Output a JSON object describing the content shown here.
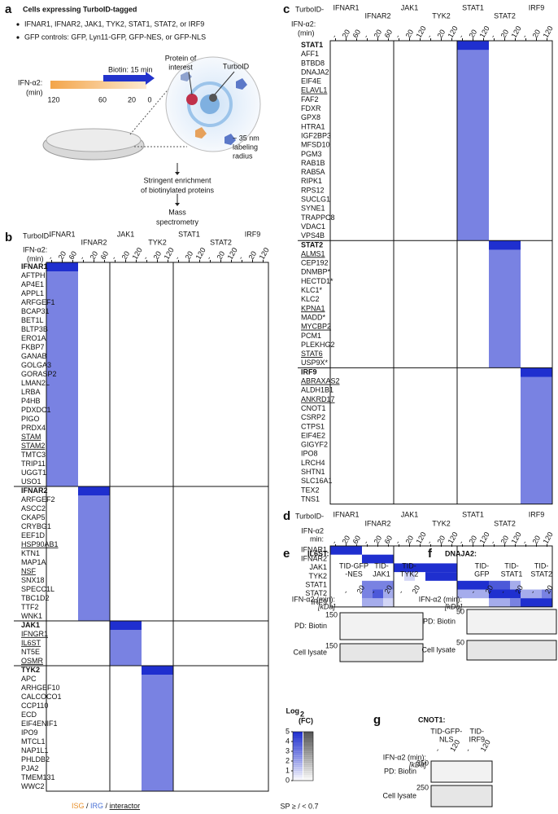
{
  "panel_a": {
    "letter": "a",
    "title": "Cells expressing TurboID-tagged",
    "bullets": [
      "IFNAR1, IFNAR2, JAK1, TYK2, STAT1, STAT2, or IRF9",
      "GFP controls: GFP, Lyn11-GFP, GFP-NES, or GFP-NLS"
    ],
    "biotin": "Biotin: 15 min",
    "ifn": "IFN-α2:",
    "ifn_unit": "(min)",
    "timeline": [
      "120",
      "60",
      "20",
      "0"
    ],
    "poi": [
      "Protein of",
      "interest"
    ],
    "turboid": "TurboID",
    "radius": [
      "~ 35 nm",
      "labeling",
      "radius"
    ],
    "step1": [
      "Stringent enrichment",
      "of biotinylated proteins"
    ],
    "step2": [
      "Mass",
      "spectrometry"
    ]
  },
  "heatmap_header": {
    "prefix": "TurboID-",
    "ifn": "IFN-α2:",
    "unit": "(min)",
    "baits": [
      "IFNAR1",
      "IFNAR2",
      "JAK1",
      "TYK2",
      "STAT1",
      "STAT2",
      "IRF9"
    ],
    "times": [
      [
        "-",
        "20",
        "60"
      ],
      [
        "-",
        "20",
        "60"
      ],
      [
        "-",
        "20",
        "120"
      ],
      [
        "-",
        "20",
        "120"
      ],
      [
        "-",
        "20",
        "120"
      ],
      [
        "-",
        "20",
        "120"
      ],
      [
        "-",
        "20",
        "120"
      ]
    ]
  },
  "panel_b": {
    "letter": "b",
    "sections": [
      [
        {
          "label": "IFNAR1",
          "bold": true
        },
        {
          "label": "AFTPH"
        },
        {
          "label": "AP4E1"
        },
        {
          "label": "APPL1"
        },
        {
          "label": "ARFGEF1"
        },
        {
          "label": "BCAP31"
        },
        {
          "label": "BET1L"
        },
        {
          "label": "BLTP3B"
        },
        {
          "label": "ERO1A"
        },
        {
          "label": "FKBP7"
        },
        {
          "label": "GANAB"
        },
        {
          "label": "GOLGA3"
        },
        {
          "label": "GORASP2"
        },
        {
          "label": "LMAN2L"
        },
        {
          "label": "LRBA"
        },
        {
          "label": "P4HB"
        },
        {
          "label": "PDXDC1"
        },
        {
          "label": "PIGO"
        },
        {
          "label": "PRDX4"
        },
        {
          "label": "STAM",
          "underline": true
        },
        {
          "label": "STAM2",
          "underline": true
        },
        {
          "label": "TMTC3"
        },
        {
          "label": "TRIP11"
        },
        {
          "label": "UGGT1"
        },
        {
          "label": "USO1"
        }
      ],
      [
        {
          "label": "IFNAR2",
          "bold": true,
          "color": "#e8902a"
        },
        {
          "label": "ARFGEF2"
        },
        {
          "label": "ASCC2"
        },
        {
          "label": "CKAP5"
        },
        {
          "label": "CRYBG1",
          "color": "#e8902a"
        },
        {
          "label": "EEF1D"
        },
        {
          "label": "HSP90AB1",
          "underline": true
        },
        {
          "label": "KTN1"
        },
        {
          "label": "MAP1A"
        },
        {
          "label": "NSF",
          "underline": true
        },
        {
          "label": "SNX18"
        },
        {
          "label": "SPECC1L"
        },
        {
          "label": "TBC1D2"
        },
        {
          "label": "TTF2"
        },
        {
          "label": "WNK1"
        }
      ],
      [
        {
          "label": "JAK1",
          "bold": true
        },
        {
          "label": "IFNGR1",
          "underline": true
        },
        {
          "label": "IL6ST",
          "underline": true
        },
        {
          "label": "NT5E",
          "color": "#e8902a"
        },
        {
          "label": "OSMR",
          "underline": true
        }
      ],
      [
        {
          "label": "TYK2",
          "bold": true
        },
        {
          "label": "APC"
        },
        {
          "label": "ARHGEF10"
        },
        {
          "label": "CALCOCO1"
        },
        {
          "label": "CCP110"
        },
        {
          "label": "ECD"
        },
        {
          "label": "EIF4ENIF1"
        },
        {
          "label": "IPO9"
        },
        {
          "label": "MTCL1"
        },
        {
          "label": "NAP1L1"
        },
        {
          "label": "PHLDB2"
        },
        {
          "label": "PJA2"
        },
        {
          "label": "TMEM131"
        },
        {
          "label": "WWC2"
        }
      ]
    ]
  },
  "panel_c": {
    "letter": "c",
    "sections": [
      [
        {
          "label": "STAT1",
          "bold": true,
          "color": "#e8902a"
        },
        {
          "label": "AFF1",
          "color": "#e8902a"
        },
        {
          "label": "BTBD8"
        },
        {
          "label": "DNAJA2",
          "color": "#e8902a"
        },
        {
          "label": "EIF4E"
        },
        {
          "label": "ELAVL1",
          "underline": true
        },
        {
          "label": "FAF2"
        },
        {
          "label": "FDXR"
        },
        {
          "label": "GPX8"
        },
        {
          "label": "HTRA1"
        },
        {
          "label": "IGF2BP3",
          "color": "#4a72d6"
        },
        {
          "label": "MFSD10",
          "color": "#e8902a"
        },
        {
          "label": "PGM3"
        },
        {
          "label": "RAB1B"
        },
        {
          "label": "RAB5A"
        },
        {
          "label": "RIPK1",
          "color": "#e8902a"
        },
        {
          "label": "RPS12"
        },
        {
          "label": "SUCLG1"
        },
        {
          "label": "SYNE1"
        },
        {
          "label": "TRAPPC8"
        },
        {
          "label": "VDAC1"
        },
        {
          "label": "VPS4B"
        }
      ],
      [
        {
          "label": "STAT2",
          "bold": true,
          "color": "#e8902a"
        },
        {
          "label": "ALMS1",
          "underline": true
        },
        {
          "label": "CEP192"
        },
        {
          "label": "DNMBP*"
        },
        {
          "label": "HECTD1*"
        },
        {
          "label": "KLC1*"
        },
        {
          "label": "KLC2"
        },
        {
          "label": "KPNA1",
          "underline": true
        },
        {
          "label": "MADD*"
        },
        {
          "label": "MYCBP2",
          "color": "#e8902a",
          "underline": true
        },
        {
          "label": "PCM1"
        },
        {
          "label": "PLEKHG2",
          "color": "#4a72d6"
        },
        {
          "label": "STAT6",
          "color": "#e8902a",
          "underline": true
        },
        {
          "label": "USP9X*"
        }
      ],
      [
        {
          "label": "IRF9",
          "bold": true,
          "color": "#e8902a"
        },
        {
          "label": "ABRAXAS2",
          "underline": true
        },
        {
          "label": "ALDH1B1",
          "color": "#4a72d6"
        },
        {
          "label": "ANKRD17",
          "underline": true
        },
        {
          "label": "CNOT1"
        },
        {
          "label": "CSRP2"
        },
        {
          "label": "CTPS1",
          "color": "#4a72d6"
        },
        {
          "label": "EIF4E2"
        },
        {
          "label": "GIGYF2"
        },
        {
          "label": "IPO8",
          "color": "#4a72d6"
        },
        {
          "label": "LRCH4"
        },
        {
          "label": "SHTN1"
        },
        {
          "label": "SLC16A1"
        },
        {
          "label": "TEX2"
        },
        {
          "label": "TNS1"
        }
      ]
    ]
  },
  "panel_d": {
    "letter": "d",
    "ifn_lines": [
      "IFN-α2",
      "min:"
    ],
    "rows": [
      "IFNAR1",
      "IFNAR2",
      "JAK1",
      "TYK2",
      "STAT1",
      "STAT2",
      "IRF9"
    ],
    "matrix": [
      [
        5,
        5,
        5,
        0,
        0,
        0,
        0,
        0,
        0,
        0,
        0,
        0,
        0,
        0,
        0,
        0,
        0,
        0,
        0,
        0,
        0
      ],
      [
        0,
        0,
        0,
        5,
        5,
        5,
        0,
        0,
        0,
        0,
        0,
        0,
        0,
        0,
        0,
        0,
        0,
        0,
        0,
        0,
        0
      ],
      [
        0,
        0,
        0,
        0,
        0,
        0,
        5,
        5,
        5,
        5,
        5,
        5,
        0,
        0,
        0,
        0,
        0,
        0,
        0,
        0,
        0
      ],
      [
        0,
        0,
        0,
        0,
        0,
        0,
        0,
        1,
        0,
        5,
        5,
        5,
        0,
        0,
        0,
        0,
        0,
        0,
        0,
        0,
        0
      ],
      [
        0,
        0,
        0,
        3,
        3,
        3,
        0,
        0,
        0,
        0,
        0,
        0,
        5,
        5,
        5,
        4,
        4,
        2,
        0,
        0,
        0
      ],
      [
        0,
        0,
        0,
        3,
        4,
        2,
        0,
        0,
        0,
        0,
        0,
        0,
        2,
        2,
        2,
        5,
        5,
        5,
        2,
        2,
        3
      ],
      [
        0,
        0,
        0,
        2,
        2,
        1,
        0,
        0,
        0,
        0,
        0,
        0,
        0,
        0,
        0,
        2,
        2,
        3,
        5,
        5,
        5
      ]
    ]
  },
  "legend": {
    "title": "Log",
    "sub": "2",
    "unit": "(FC)",
    "ticks": [
      0,
      1,
      2,
      3,
      4,
      5
    ],
    "note": "SP ≥ / < 0.7",
    "blue": "#1f2fcf",
    "gray": "#555555"
  },
  "label_key": [
    {
      "text": "ISG",
      "color": "#e8902a"
    },
    {
      "text": " / "
    },
    {
      "text": "IRG",
      "color": "#4a72d6"
    },
    {
      "text": " / "
    },
    {
      "text": "interactor",
      "underline": true
    }
  ],
  "panel_e": {
    "letter": "e",
    "title": "IL6ST:",
    "groups": [
      [
        "TID-GFP",
        "-NES"
      ],
      [
        "TID-",
        "JAK1"
      ],
      [
        "TID-",
        "TYK2"
      ]
    ],
    "lanes": [
      "-",
      "20"
    ],
    "ifn": "IFN-α2 (min):",
    "kda": "[kDa]",
    "pd_kda": "150",
    "pd": "PD: Biotin",
    "lys_kda": "150",
    "lys": "Cell lysate"
  },
  "panel_f": {
    "letter": "f",
    "title": "DNAJA2:",
    "groups": [
      [
        "TID-",
        "GFP"
      ],
      [
        "TID-",
        "STAT1"
      ],
      [
        "TID-",
        "STAT2"
      ]
    ],
    "lanes": [
      "-",
      "20"
    ],
    "ifn": "IFN-α2 (min):",
    "kda": "[kDa]",
    "pd_kda": "50",
    "pd": "PD: Biotin",
    "lys_kda": "50",
    "lys": "Cell lysate"
  },
  "panel_g": {
    "letter": "g",
    "title": "CNOT1:",
    "groups": [
      [
        "TID-GFP-",
        "NLS"
      ],
      [
        "TID-",
        "IRF9"
      ]
    ],
    "lanes": [
      "-",
      "120"
    ],
    "ifn": "IFN-α2 (min):",
    "kda": "[kDa]",
    "pd_kda": "250",
    "pd": "PD: Biotin",
    "lys_kda": "250",
    "lys": "Cell lysate"
  }
}
